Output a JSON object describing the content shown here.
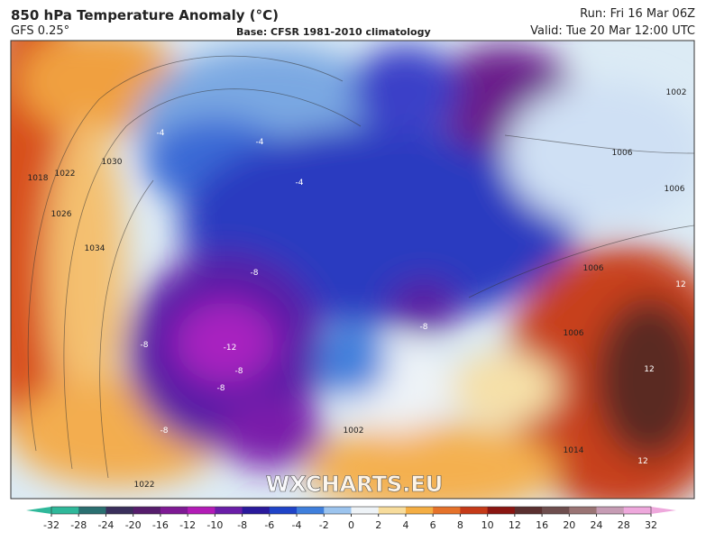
{
  "header": {
    "title": "850 hPa Temperature Anomaly (°C)",
    "model": "GFS 0.25°",
    "base": "Base: CFSR 1981-2010 climatology",
    "run": "Run: Fri 16 Mar 06Z",
    "valid": "Valid: Tue 20 Mar 12:00 UTC"
  },
  "map": {
    "watermark": "WXCHARTS.EU",
    "contour_labels": [
      "1018",
      "1022",
      "1026",
      "1030",
      "1034",
      "-4",
      "-4",
      "-4",
      "-8",
      "-8",
      "-12",
      "-8",
      "-8",
      "-8",
      "-8",
      "1006",
      "1006",
      "1002",
      "1006",
      "1006",
      "12",
      "12",
      "12",
      "1014",
      "1002",
      "1022"
    ]
  },
  "colorbar": {
    "ticks": [
      -32,
      -28,
      -24,
      -20,
      -16,
      -12,
      -10,
      -8,
      -6,
      -4,
      -2,
      0,
      2,
      4,
      6,
      8,
      10,
      12,
      16,
      20,
      24,
      28,
      32
    ],
    "colors": [
      "#2fb89a",
      "#2a6f70",
      "#3a2f5c",
      "#561d6c",
      "#7e1a94",
      "#b21cb6",
      "#6a1ea8",
      "#2a1a9c",
      "#2044c8",
      "#3f7fdc",
      "#9cc4ee",
      "#eef3f7",
      "#f7dc9c",
      "#f4ae44",
      "#e5722a",
      "#c53a18",
      "#8a1612",
      "#5a3030",
      "#6e4e4e",
      "#9a7474",
      "#c69cb4",
      "#eea8dc"
    ]
  }
}
